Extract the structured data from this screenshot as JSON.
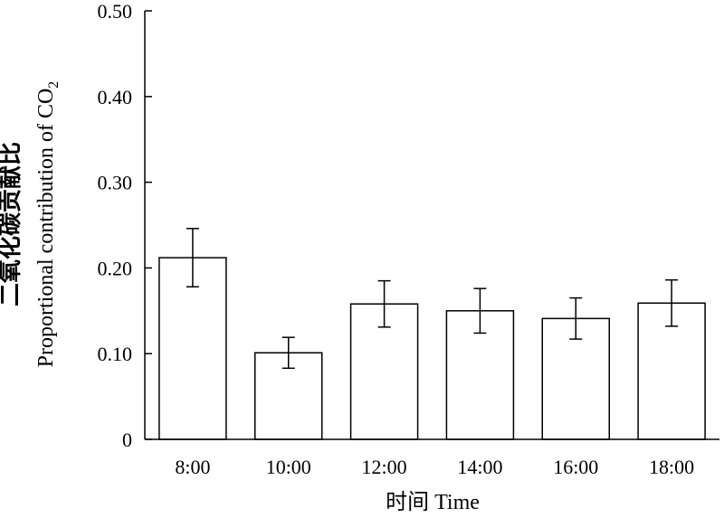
{
  "chart_data": {
    "type": "bar",
    "title": "",
    "xlabel": "时间 Time",
    "ylabel_cn": "二氧化碳贡献比",
    "ylabel_en": "Proportional contribution of CO",
    "ylabel_en_sub": "2",
    "categories": [
      "8:00",
      "10:00",
      "12:00",
      "14:00",
      "16:00",
      "18:00"
    ],
    "values": [
      0.212,
      0.101,
      0.158,
      0.15,
      0.141,
      0.159
    ],
    "errors": [
      0.034,
      0.018,
      0.027,
      0.026,
      0.024,
      0.027
    ],
    "ylim": [
      0,
      0.5
    ],
    "yticks": [
      0,
      0.1,
      0.2,
      0.3,
      0.4,
      0.5
    ],
    "ytick_labels": [
      "0",
      "0.10",
      "0.20",
      "0.30",
      "0.40",
      "0.50"
    ],
    "grid": false,
    "legend": "none",
    "bar_fill": "#ffffff",
    "bar_stroke": "#000000"
  }
}
